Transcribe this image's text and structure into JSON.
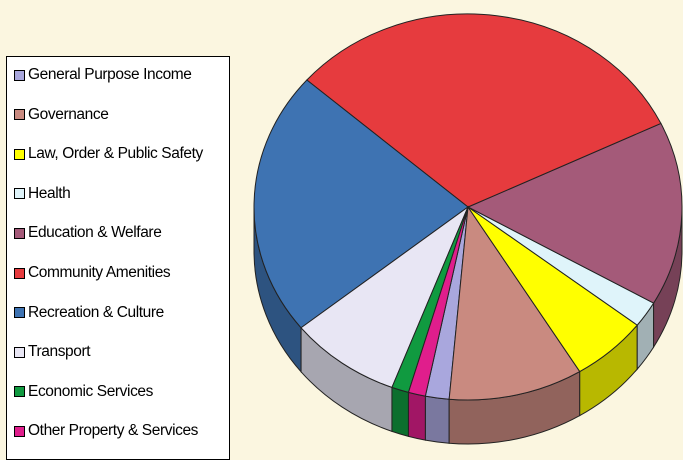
{
  "chart_data": {
    "type": "pie",
    "title": "",
    "three_d": true,
    "legend_position": "left",
    "series": [
      {
        "name": "General Purpose Income",
        "value": 1.8,
        "color": "#a9a7dd"
      },
      {
        "name": "Governance",
        "value": 10.2,
        "color": "#c98a80"
      },
      {
        "name": "Law, Order & Public Safety",
        "value": 5.8,
        "color": "#ffff00"
      },
      {
        "name": "Health",
        "value": 2.2,
        "color": "#dff4fa"
      },
      {
        "name": "Education & Welfare",
        "value": 15.5,
        "color": "#a45a79"
      },
      {
        "name": "Community Amenities",
        "value": 31.6,
        "color": "#e63b3e"
      },
      {
        "name": "Recreation & Culture",
        "value": 22.3,
        "color": "#3e73b2"
      },
      {
        "name": "Transport",
        "value": 8.5,
        "color": "#e8e6f4"
      },
      {
        "name": "Economic Services",
        "value": 1.3,
        "color": "#109a40"
      },
      {
        "name": "Other Property & Services",
        "value": 1.3,
        "color": "#e01e8c"
      }
    ]
  }
}
